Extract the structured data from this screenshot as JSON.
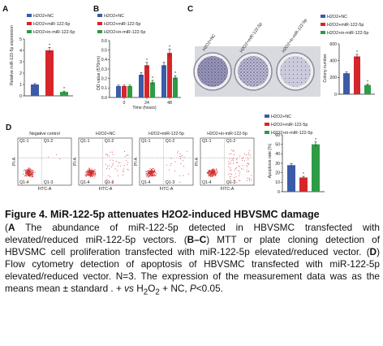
{
  "colors": {
    "nc": "#3b5ba9",
    "mimic": "#d6262b",
    "inhibitor": "#2e9b45",
    "scatter": "#d12a2a"
  },
  "legend": {
    "nc": "H2O2+NC",
    "mimic": "H2O2+miR-122-5p",
    "inhibitor": "H2O2+in-miR-122-5p"
  },
  "panels": {
    "a": {
      "letter": "A",
      "ylabel": "Relative miR-122-5p expression",
      "ticks": [
        "0",
        "1",
        "2",
        "3",
        "4",
        "5"
      ],
      "star_mimic": "*",
      "star_inhibitor": "*"
    },
    "b": {
      "letter": "B",
      "ylabel": "OD value (570nm)",
      "xlabel": "Time (hours)",
      "xticks": [
        "0",
        "24",
        "48"
      ],
      "yticks": [
        "0.0",
        "0.1",
        "0.2",
        "0.3",
        "0.4",
        "0.5",
        "0.6"
      ],
      "star": "*"
    },
    "c": {
      "letter": "C",
      "dish_labels": [
        "H2O2+NC",
        "H2O2+miR-122-5p",
        "H2O2+in-miR-122-5p"
      ],
      "ylabel": "Colony number",
      "yticks": [
        "0",
        "200",
        "400",
        "600"
      ],
      "star": "*"
    },
    "d": {
      "letter": "D",
      "plot_titles": [
        "Negative control",
        "H2O2+NC",
        "H2O2+miR-122-5p",
        "H2O2+in-miR-122-5p"
      ],
      "quadrants": [
        "Q1-1",
        "Q1-2",
        "Q1-3",
        "Q1-4"
      ],
      "axis_x": "FITC-A",
      "axis_y": "PI-A",
      "bar_ylabel": "Apoptosis rate (%)",
      "bar_yticks": [
        "0",
        "10",
        "20",
        "30",
        "40",
        "50",
        "60"
      ],
      "star": "*"
    }
  },
  "chart_data": [
    {
      "type": "bar",
      "categories": [
        "H2O2+NC",
        "H2O2+miR-122-5p",
        "H2O2+in-miR-122-5p"
      ],
      "values": [
        1.0,
        4.0,
        0.35
      ],
      "ylabel": "Relative miR-122-5p expression",
      "ylim": [
        0,
        5
      ]
    },
    {
      "type": "bar",
      "categories": [
        "0",
        "24",
        "48"
      ],
      "series": [
        {
          "name": "H2O2+NC",
          "values": [
            0.12,
            0.24,
            0.34
          ]
        },
        {
          "name": "H2O2+miR-122-5p",
          "values": [
            0.12,
            0.34,
            0.47
          ]
        },
        {
          "name": "H2O2+in-miR-122-5p",
          "values": [
            0.12,
            0.16,
            0.21
          ]
        }
      ],
      "xlabel": "Time (hours)",
      "ylabel": "OD value (570nm)",
      "ylim": [
        0,
        0.6
      ]
    },
    {
      "type": "bar",
      "categories": [
        "H2O2+NC",
        "H2O2+miR-122-5p",
        "H2O2+in-miR-122-5p"
      ],
      "values": [
        250,
        450,
        110
      ],
      "ylabel": "Colony number",
      "ylim": [
        0,
        600
      ]
    },
    {
      "type": "bar",
      "categories": [
        "H2O2+NC",
        "H2O2+miR-122-5p",
        "H2O2+in-miR-122-5p"
      ],
      "values": [
        28,
        15,
        50
      ],
      "ylabel": "Apoptosis rate (%)",
      "ylim": [
        0,
        60
      ]
    }
  ],
  "caption": {
    "title": "Figure 4. MiR-122-5p attenuates H2O2-induced HBVSMC damage",
    "a_letter": "A",
    "a_text": " The abundance of miR-122-5p detected in HBVSMC transfected with elevated/reduced miR-122-5p vectors. (",
    "bc_letter": "B–C",
    "bc_text": ") MTT or plate cloning detection of HBVSMC cell proliferation transfected with miR-122-5p elevated/reduced vector. (",
    "d_letter": "D",
    "d_text": ") Flow cytometry detection of apoptosis of HBVSMC transfected with miR-122-5p elevated/reduced vector. N=3. The expression of the measurement data was as the means mean ± standard . + ",
    "vs": "vs",
    "h": " H",
    "sub2": "2",
    "o": "O",
    "nc_text": " + NC, ",
    "p": "P",
    "p_text": "<0.05."
  }
}
